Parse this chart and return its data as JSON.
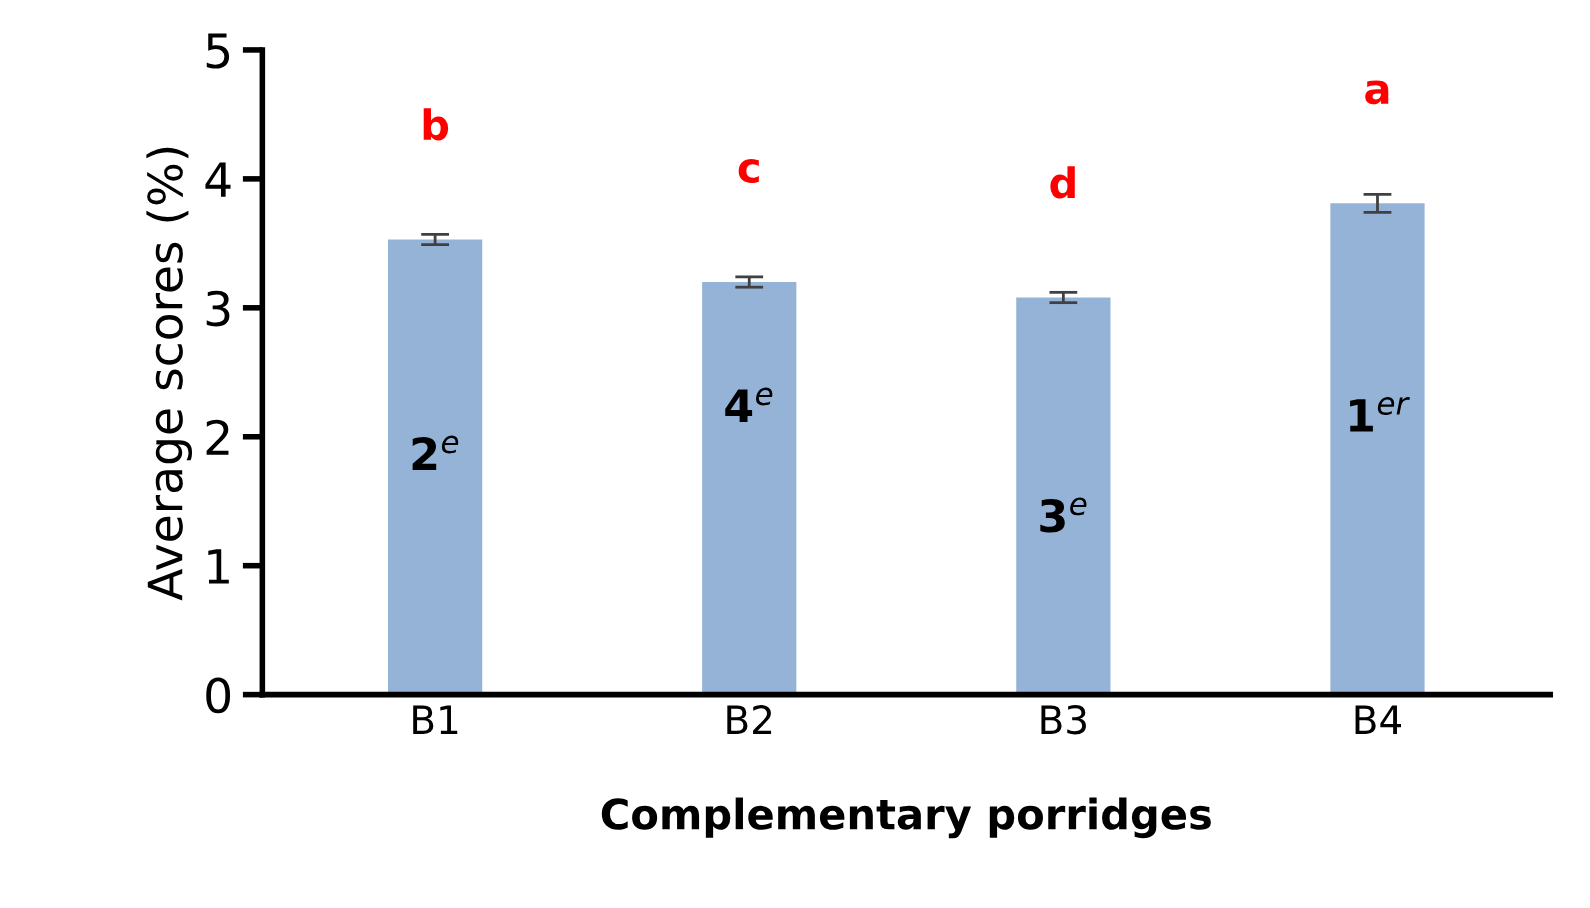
{
  "chart_data": {
    "type": "bar",
    "xlabel": "Complementary porridges",
    "ylabel": "Average scores (%)",
    "categories": [
      "B1",
      "B2",
      "B3",
      "B4"
    ],
    "series": [
      {
        "color": "#95b3d7",
        "values": [
          3.53,
          3.2,
          3.08,
          3.81
        ],
        "errors": [
          0.04,
          0.04,
          0.04,
          0.07
        ]
      }
    ],
    "ylim": [
      0,
      5
    ],
    "yticks": [
      0,
      1,
      2,
      3,
      4,
      5
    ],
    "grid": false,
    "legend": false,
    "annotations": [
      "b",
      "c",
      "d",
      "a",
      "2$^{e}$",
      "4$^{e}$",
      "3$^{e}$",
      "1$^{er}$"
    ]
  }
}
